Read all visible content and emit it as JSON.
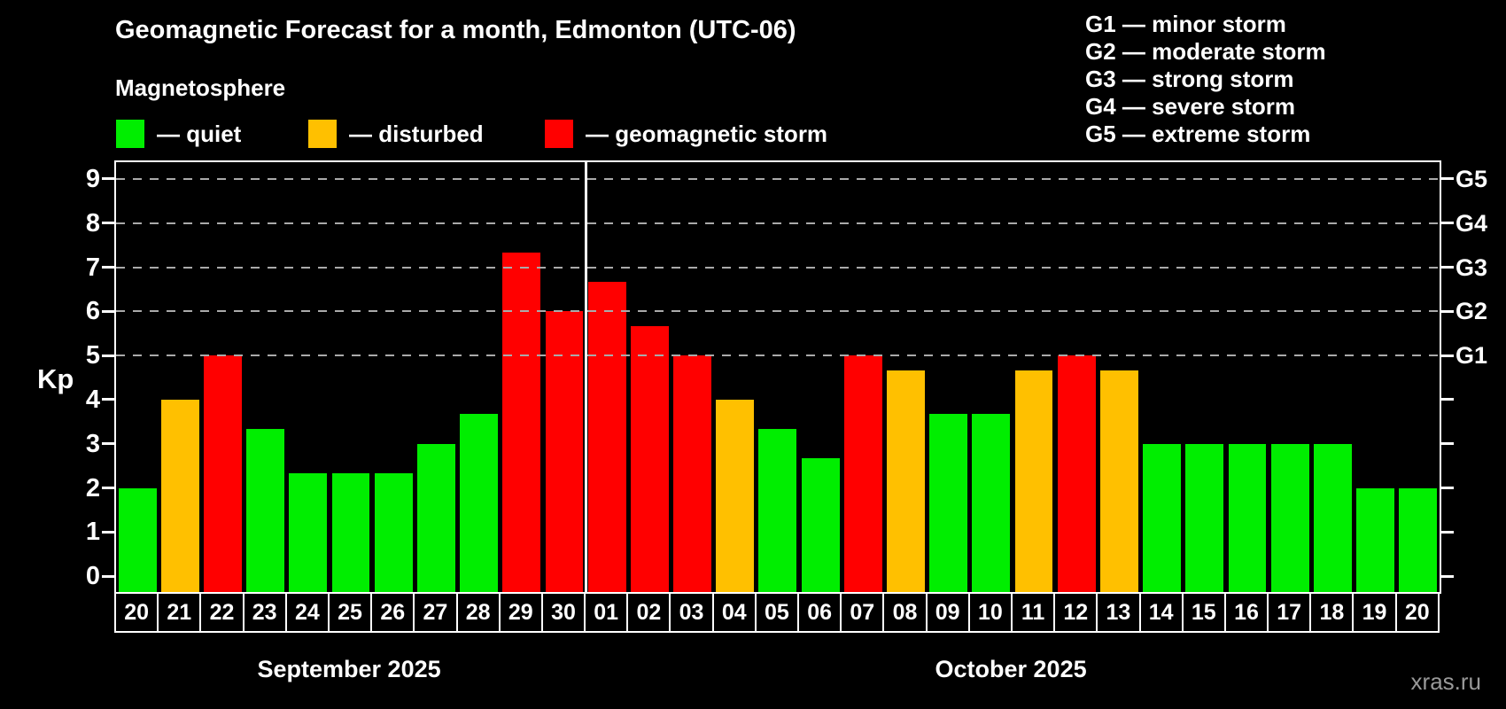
{
  "title": "Geomagnetic Forecast for a month, Edmonton (UTC-06)",
  "subtitle": "Magnetosphere",
  "legend": {
    "items": [
      {
        "key": "quiet",
        "label": "— quiet",
        "color": "#00ee00"
      },
      {
        "key": "disturbed",
        "label": "— disturbed",
        "color": "#ffc000"
      },
      {
        "key": "storm",
        "label": "— geomagnetic storm",
        "color": "#ff0000"
      }
    ]
  },
  "storm_scale_legend": [
    "G1 — minor storm",
    "G2 — moderate storm",
    "G3 — strong storm",
    "G4 — severe storm",
    "G5 — extreme storm"
  ],
  "watermark": "xras.ru",
  "chart_data": {
    "type": "bar",
    "ylabel": "Kp",
    "axis_range": [
      -0.36,
      9.38
    ],
    "y_ticks": [
      0,
      1,
      2,
      3,
      4,
      5,
      6,
      7,
      8,
      9
    ],
    "gridlines_at": [
      5,
      6,
      7,
      8,
      9
    ],
    "right_axis_labels": [
      {
        "value": 5,
        "label": "G1"
      },
      {
        "value": 6,
        "label": "G2"
      },
      {
        "value": 7,
        "label": "G3"
      },
      {
        "value": 8,
        "label": "G4"
      },
      {
        "value": 9,
        "label": "G5"
      }
    ],
    "grid_color": "#aaaaaa",
    "colors": {
      "quiet": "#00ee00",
      "disturbed": "#ffc000",
      "storm": "#ff0000"
    },
    "months": [
      {
        "label": "September 2025",
        "days": 11
      },
      {
        "label": "October 2025",
        "days": 20
      }
    ],
    "bars": [
      {
        "day": "20",
        "value": 2.0,
        "status": "quiet"
      },
      {
        "day": "21",
        "value": 4.0,
        "status": "disturbed"
      },
      {
        "day": "22",
        "value": 5.0,
        "status": "storm"
      },
      {
        "day": "23",
        "value": 3.33,
        "status": "quiet"
      },
      {
        "day": "24",
        "value": 2.33,
        "status": "quiet"
      },
      {
        "day": "25",
        "value": 2.33,
        "status": "quiet"
      },
      {
        "day": "26",
        "value": 2.33,
        "status": "quiet"
      },
      {
        "day": "27",
        "value": 3.0,
        "status": "quiet"
      },
      {
        "day": "28",
        "value": 3.67,
        "status": "quiet"
      },
      {
        "day": "29",
        "value": 7.33,
        "status": "storm"
      },
      {
        "day": "30",
        "value": 6.0,
        "status": "storm"
      },
      {
        "day": "01",
        "value": 6.67,
        "status": "storm"
      },
      {
        "day": "02",
        "value": 5.67,
        "status": "storm"
      },
      {
        "day": "03",
        "value": 5.0,
        "status": "storm"
      },
      {
        "day": "04",
        "value": 4.0,
        "status": "disturbed"
      },
      {
        "day": "05",
        "value": 3.33,
        "status": "quiet"
      },
      {
        "day": "06",
        "value": 2.67,
        "status": "quiet"
      },
      {
        "day": "07",
        "value": 5.0,
        "status": "storm"
      },
      {
        "day": "08",
        "value": 4.67,
        "status": "disturbed"
      },
      {
        "day": "09",
        "value": 3.67,
        "status": "quiet"
      },
      {
        "day": "10",
        "value": 3.67,
        "status": "quiet"
      },
      {
        "day": "11",
        "value": 4.67,
        "status": "disturbed"
      },
      {
        "day": "12",
        "value": 5.0,
        "status": "storm"
      },
      {
        "day": "13",
        "value": 4.67,
        "status": "disturbed"
      },
      {
        "day": "14",
        "value": 3.0,
        "status": "quiet"
      },
      {
        "day": "15",
        "value": 3.0,
        "status": "quiet"
      },
      {
        "day": "16",
        "value": 3.0,
        "status": "quiet"
      },
      {
        "day": "17",
        "value": 3.0,
        "status": "quiet"
      },
      {
        "day": "18",
        "value": 3.0,
        "status": "quiet"
      },
      {
        "day": "19",
        "value": 2.0,
        "status": "quiet"
      },
      {
        "day": "20",
        "value": 2.0,
        "status": "quiet"
      }
    ]
  }
}
